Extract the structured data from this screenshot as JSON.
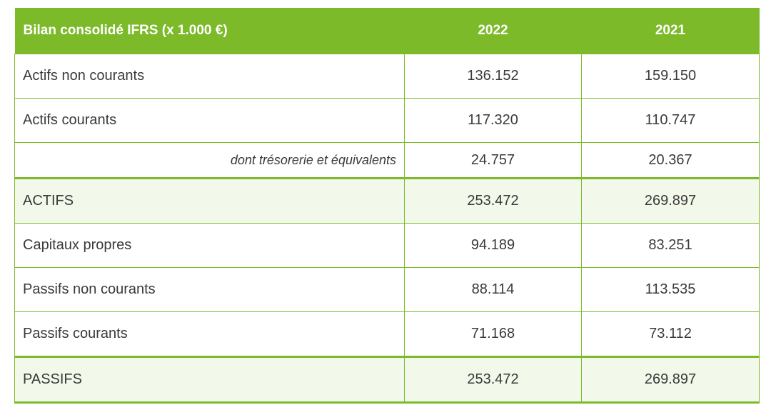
{
  "table": {
    "header": {
      "label": "Bilan consolidé IFRS (x 1.000 €)",
      "year1": "2022",
      "year2": "2021"
    },
    "rows": [
      {
        "label": "Actifs non courants",
        "v2022": "136.152",
        "v2021": "159.150"
      },
      {
        "label": "Actifs courants",
        "v2022": "117.320",
        "v2021": "110.747"
      },
      {
        "label": "dont trésorerie et équivalents",
        "v2022": "24.757",
        "v2021": "20.367"
      },
      {
        "label": "ACTIFS",
        "v2022": "253.472",
        "v2021": "269.897"
      },
      {
        "label": "Capitaux propres",
        "v2022": "94.189",
        "v2021": "83.251"
      },
      {
        "label": "Passifs non courants",
        "v2022": "88.114",
        "v2021": "113.535"
      },
      {
        "label": "Passifs courants",
        "v2022": "71.168",
        "v2021": "73.112"
      },
      {
        "label": "PASSIFS",
        "v2022": "253.472",
        "v2021": "269.897"
      }
    ]
  },
  "colors": {
    "accent_green": "#7cba2a",
    "total_row_bg": "#f2f8ea"
  }
}
